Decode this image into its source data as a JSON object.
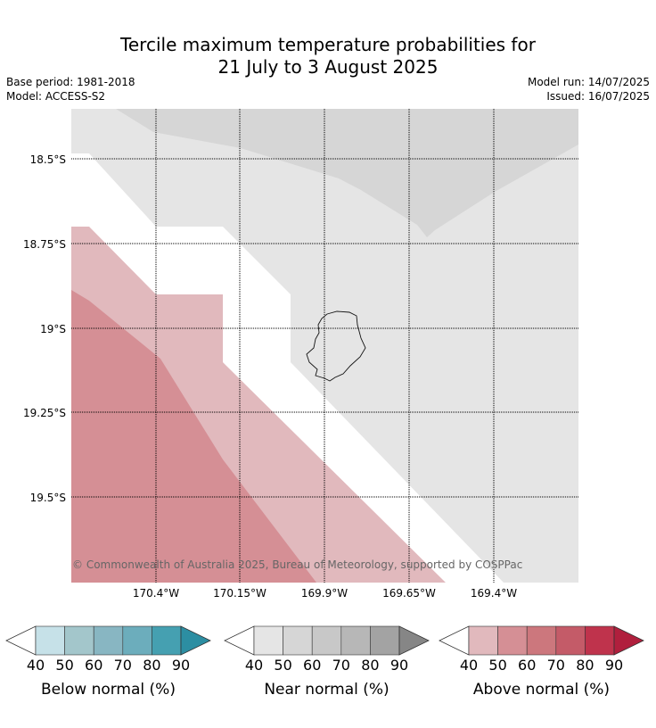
{
  "header": {
    "title_line1": "Tercile maximum temperature probabilities for",
    "title_line2": "21 July to 3 August 2025",
    "base_period": "Base period: 1981-2018",
    "model": "Model: ACCESS-S2",
    "model_run": "Model run: 14/07/2025",
    "issued": "Issued: 16/07/2025"
  },
  "map": {
    "lat_labels": [
      "18.5°S",
      "18.75°S",
      "19°S",
      "19.25°S",
      "19.5°S"
    ],
    "lon_labels": [
      "170.4°W",
      "170.15°W",
      "169.9°W",
      "169.65°W",
      "169.4°W"
    ],
    "copyright": "© Commonwealth of Australia 2025, Bureau of Meteorology, supported by COSPPac"
  },
  "colorbars": [
    {
      "name": "below",
      "label": "Below normal (%)",
      "ticks": [
        "40",
        "50",
        "60",
        "70",
        "80",
        "90"
      ],
      "colors": [
        "#c6e1e8",
        "#a3c6cb",
        "#88b6c2",
        "#6cadbc",
        "#45a0b1",
        "#2c8ea2"
      ]
    },
    {
      "name": "near",
      "label": "Near normal (%)",
      "ticks": [
        "40",
        "50",
        "60",
        "70",
        "80",
        "90"
      ],
      "colors": [
        "#e5e5e5",
        "#d6d6d6",
        "#c8c8c8",
        "#b7b7b7",
        "#a3a3a3",
        "#868686"
      ]
    },
    {
      "name": "above",
      "label": "Above normal (%)",
      "ticks": [
        "40",
        "50",
        "60",
        "70",
        "80",
        "90"
      ],
      "colors": [
        "#e1b9bd",
        "#d58f95",
        "#cc777d",
        "#c45b68",
        "#bf334c",
        "#b01f3d"
      ]
    }
  ]
}
